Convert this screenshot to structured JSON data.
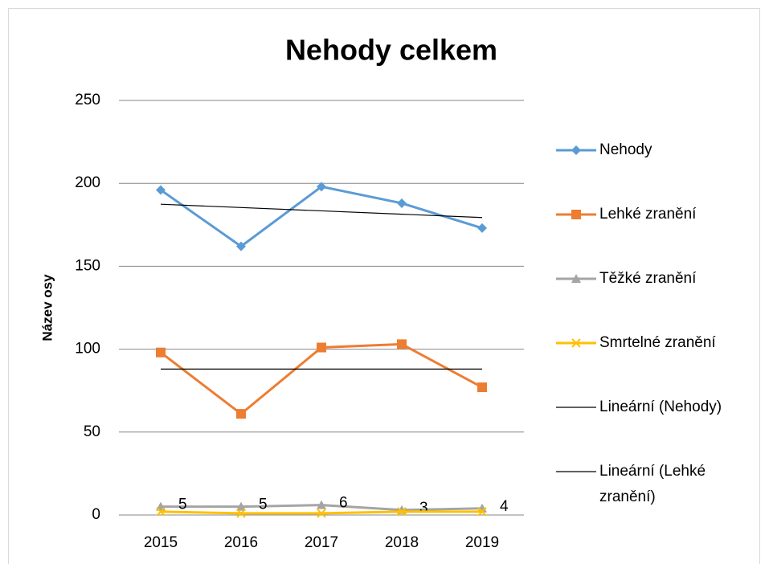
{
  "chart_data": {
    "type": "line",
    "title": "Nehody celkem",
    "y_label": "Název osy",
    "categories": [
      "2015",
      "2016",
      "2017",
      "2018",
      "2019"
    ],
    "ylim": [
      0,
      250
    ],
    "yticks": [
      0,
      50,
      100,
      150,
      200,
      250
    ],
    "grid": true,
    "legend": "right",
    "series": [
      {
        "name": "Nehody",
        "color": "#5b9bd5",
        "marker": "diamond",
        "values": [
          196,
          162,
          198,
          188,
          173
        ]
      },
      {
        "name": "Lehké zranění",
        "color": "#ed7d31",
        "marker": "square",
        "values": [
          98,
          61,
          101,
          103,
          77
        ]
      },
      {
        "name": "Těžké zranění",
        "color": "#a5a5a5",
        "marker": "triangle",
        "data_labels": true,
        "values": [
          5,
          5,
          6,
          3,
          4
        ]
      },
      {
        "name": "Smrtelné zranění",
        "color": "#ffc000",
        "marker": "x",
        "values": [
          2,
          1,
          1,
          2,
          2
        ]
      },
      {
        "name": "Lineární (Nehody)",
        "color": "#000000",
        "marker": "none",
        "values": [
          187.4,
          185.4,
          183.4,
          181.4,
          179.4
        ]
      },
      {
        "name": "Lineární (Lehké zranění)",
        "color": "#000000",
        "marker": "none",
        "values": [
          88,
          88,
          88,
          88,
          88
        ]
      }
    ]
  }
}
